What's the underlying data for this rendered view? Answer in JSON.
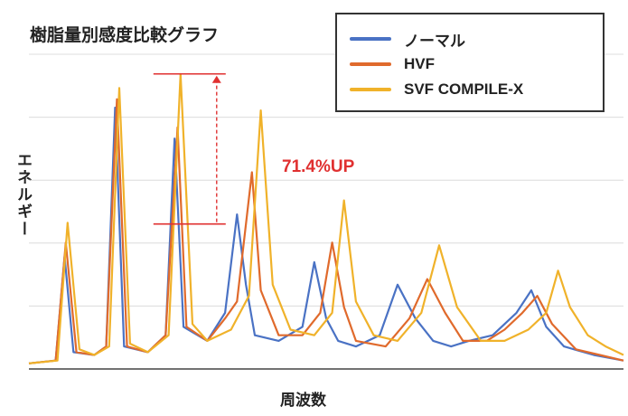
{
  "chart_data": {
    "type": "line",
    "title": "樹脂量別感度比較グラフ",
    "xlabel": "周波数",
    "ylabel": "エネルギー",
    "ylim": [
      0,
      1
    ],
    "grid": true,
    "legend_position": "top-right",
    "annotation": "71.4%UP",
    "series": [
      {
        "name": "ノーマル",
        "color": "#4a72c4",
        "x": [
          0,
          0.045,
          0.06,
          0.075,
          0.11,
          0.13,
          0.145,
          0.16,
          0.2,
          0.23,
          0.245,
          0.26,
          0.3,
          0.33,
          0.35,
          0.365,
          0.38,
          0.42,
          0.46,
          0.48,
          0.5,
          0.52,
          0.55,
          0.59,
          0.62,
          0.65,
          0.68,
          0.71,
          0.74,
          0.78,
          0.82,
          0.845,
          0.87,
          0.9,
          0.95,
          1.0
        ],
        "values": [
          0.02,
          0.03,
          0.4,
          0.06,
          0.05,
          0.08,
          0.93,
          0.08,
          0.06,
          0.12,
          0.82,
          0.15,
          0.1,
          0.2,
          0.55,
          0.3,
          0.12,
          0.1,
          0.15,
          0.38,
          0.18,
          0.1,
          0.08,
          0.12,
          0.3,
          0.18,
          0.1,
          0.08,
          0.1,
          0.12,
          0.2,
          0.28,
          0.15,
          0.08,
          0.05,
          0.03
        ]
      },
      {
        "name": "HVF",
        "color": "#e06a2c",
        "x": [
          0,
          0.045,
          0.062,
          0.08,
          0.11,
          0.13,
          0.148,
          0.165,
          0.2,
          0.23,
          0.25,
          0.265,
          0.3,
          0.33,
          0.35,
          0.375,
          0.39,
          0.42,
          0.46,
          0.49,
          0.51,
          0.53,
          0.55,
          0.6,
          0.64,
          0.67,
          0.7,
          0.73,
          0.77,
          0.8,
          0.83,
          0.855,
          0.88,
          0.92,
          0.96,
          1.0
        ],
        "values": [
          0.02,
          0.03,
          0.45,
          0.06,
          0.05,
          0.08,
          0.96,
          0.08,
          0.06,
          0.12,
          0.86,
          0.15,
          0.1,
          0.18,
          0.24,
          0.7,
          0.28,
          0.12,
          0.12,
          0.2,
          0.45,
          0.22,
          0.1,
          0.08,
          0.18,
          0.32,
          0.2,
          0.1,
          0.1,
          0.14,
          0.2,
          0.26,
          0.16,
          0.07,
          0.05,
          0.03
        ]
      },
      {
        "name": "SVF COMPILE-X",
        "color": "#f0b22a",
        "x": [
          0,
          0.048,
          0.065,
          0.085,
          0.11,
          0.135,
          0.152,
          0.17,
          0.2,
          0.235,
          0.255,
          0.275,
          0.3,
          0.34,
          0.37,
          0.39,
          0.41,
          0.44,
          0.48,
          0.51,
          0.53,
          0.55,
          0.58,
          0.62,
          0.66,
          0.69,
          0.72,
          0.76,
          0.8,
          0.84,
          0.87,
          0.89,
          0.91,
          0.94,
          0.97,
          1.0
        ],
        "values": [
          0.02,
          0.03,
          0.52,
          0.07,
          0.05,
          0.08,
          1.0,
          0.09,
          0.06,
          0.12,
          1.05,
          0.16,
          0.1,
          0.14,
          0.26,
          0.92,
          0.3,
          0.14,
          0.12,
          0.2,
          0.6,
          0.24,
          0.12,
          0.1,
          0.2,
          0.44,
          0.22,
          0.1,
          0.1,
          0.14,
          0.2,
          0.35,
          0.22,
          0.12,
          0.08,
          0.05
        ]
      }
    ]
  }
}
